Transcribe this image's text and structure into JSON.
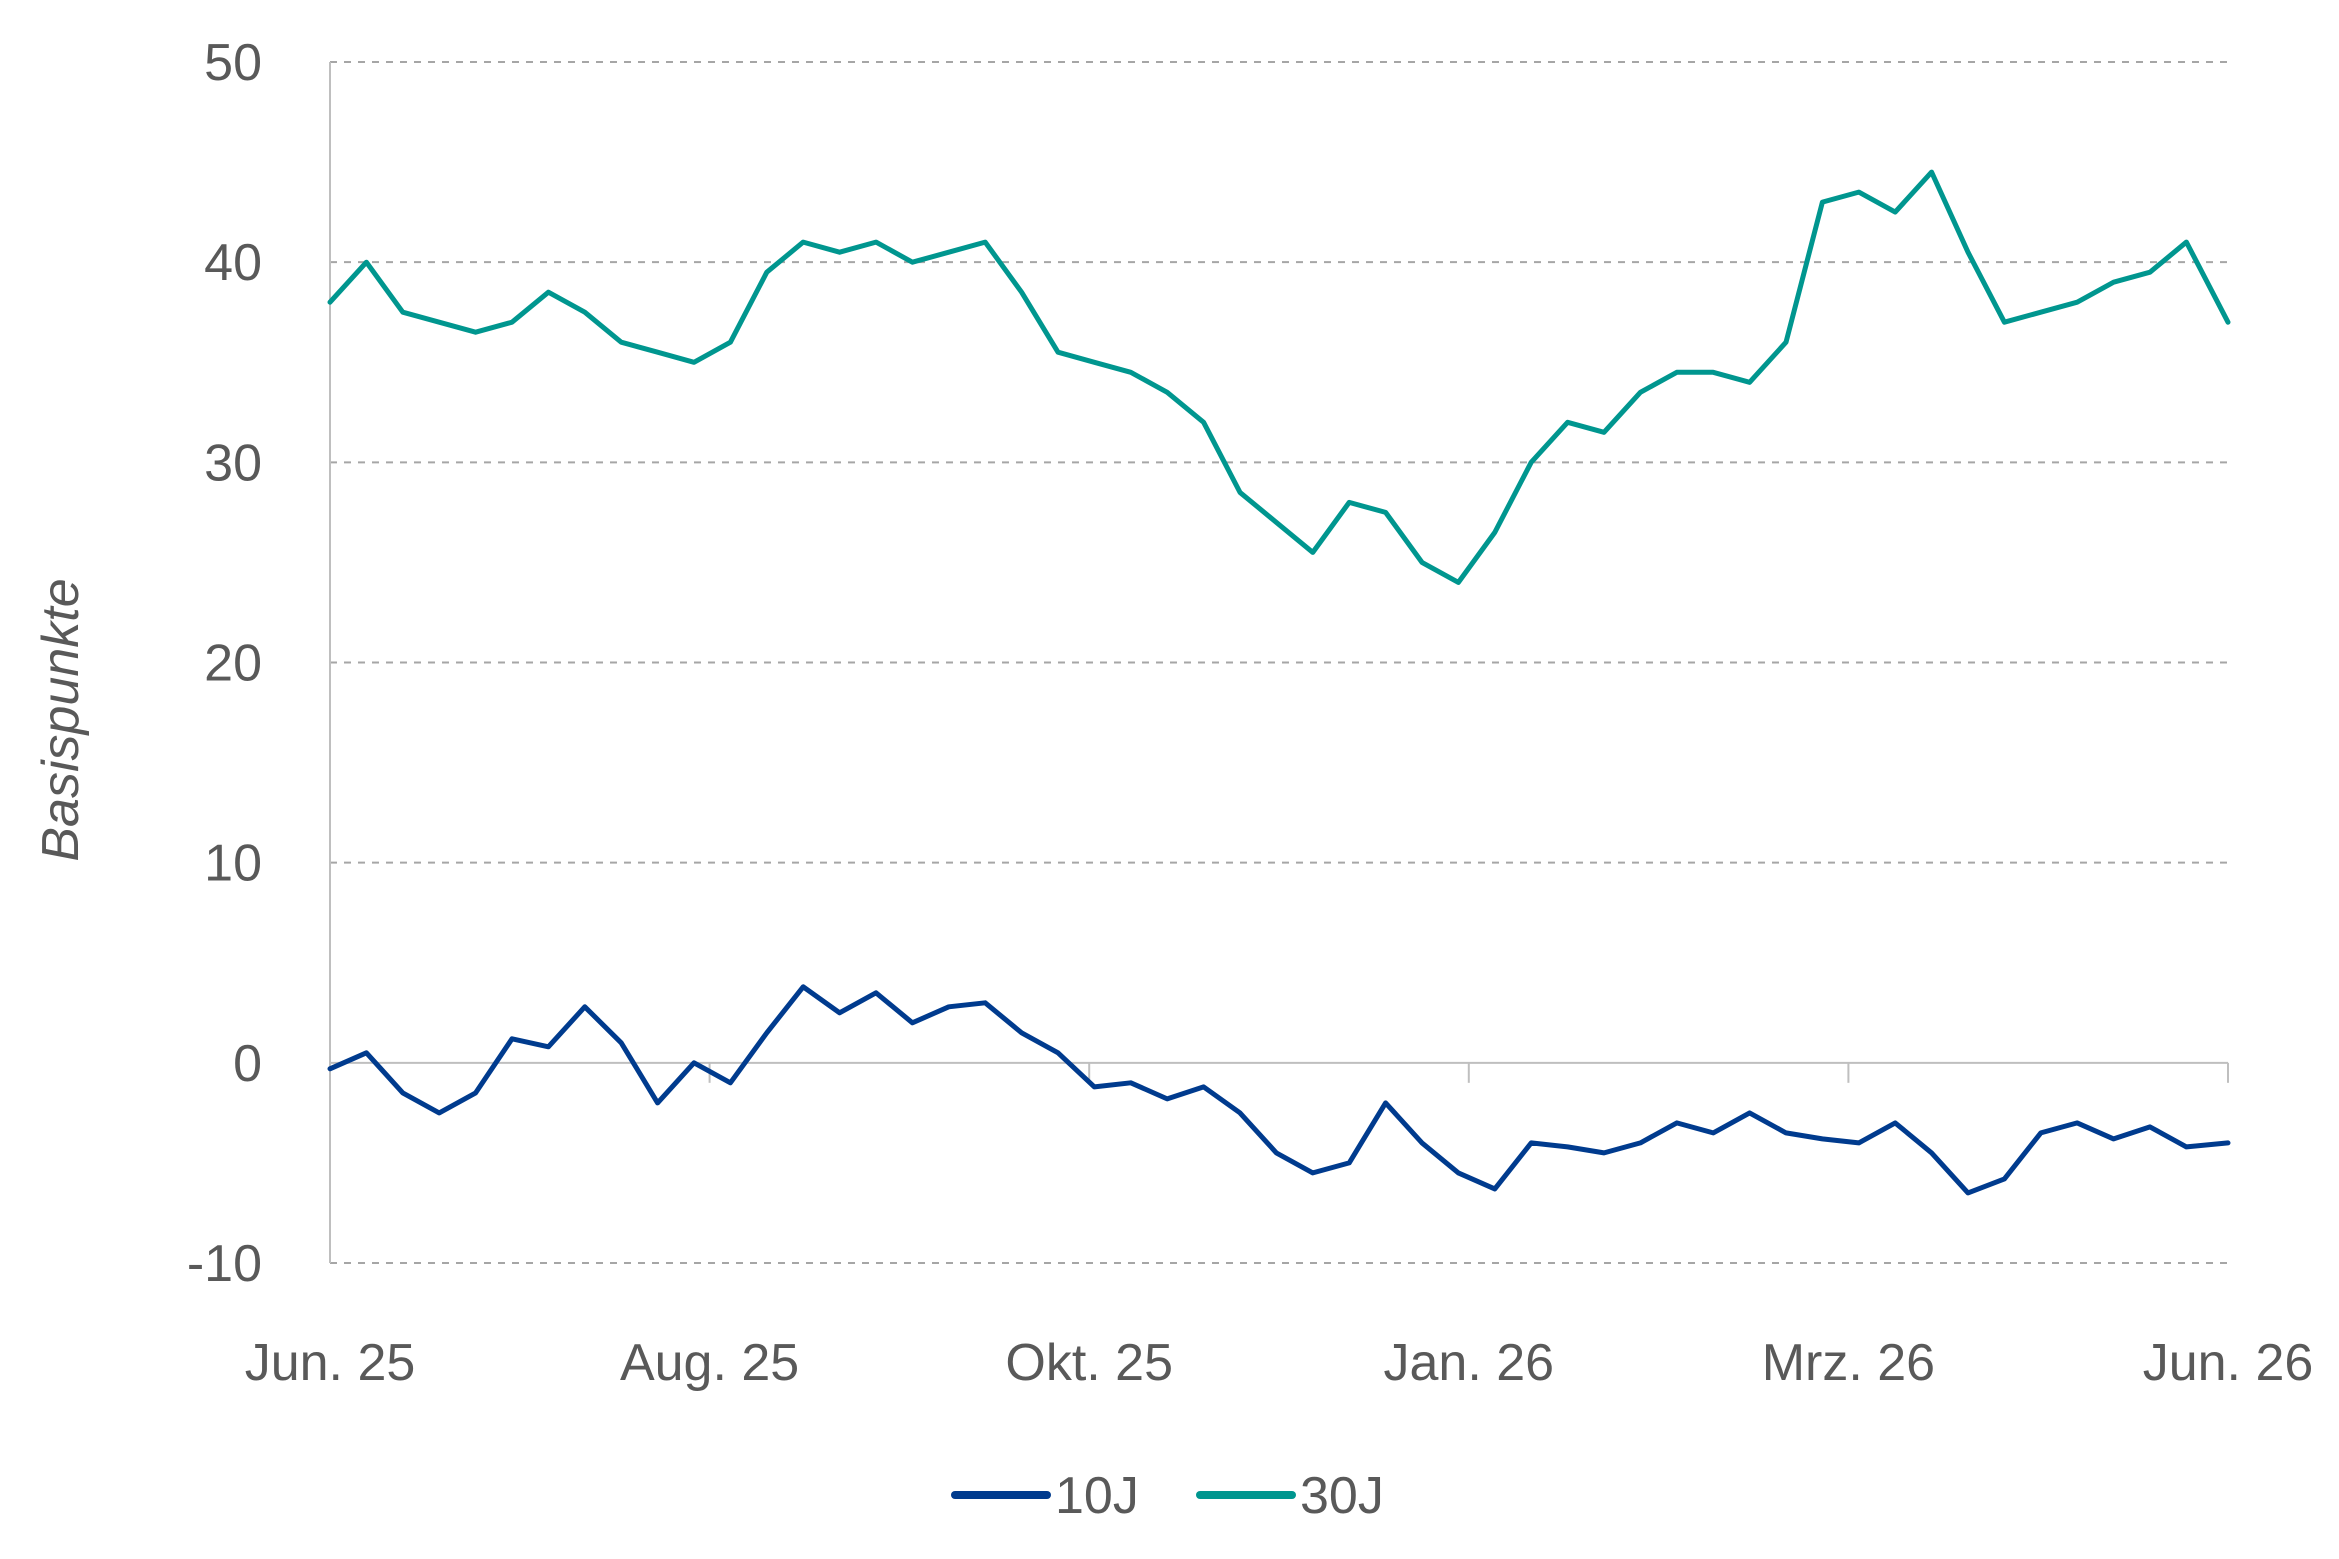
{
  "chart_data": {
    "type": "line",
    "ylabel": "Basispunkte",
    "ylim": [
      -10,
      50
    ],
    "yticks": [
      -10,
      0,
      10,
      20,
      30,
      40,
      50
    ],
    "grid": true,
    "legend_position": "bottom",
    "x_start": "2025-06-01",
    "x_end": "2026-06-01",
    "xtick_labels": [
      "Jun. 25",
      "Aug. 25",
      "Okt. 25",
      "Jan. 26",
      "Mrz. 26",
      "Jun. 26"
    ],
    "series": [
      {
        "name": "10J",
        "color": "#003b8e",
        "x": [
          "2025-06-01",
          "2025-06-08",
          "2025-06-15",
          "2025-06-22",
          "2025-06-29",
          "2025-07-06",
          "2025-07-13",
          "2025-07-20",
          "2025-07-27",
          "2025-08-03",
          "2025-08-10",
          "2025-08-17",
          "2025-08-24",
          "2025-08-31",
          "2025-09-07",
          "2025-09-14",
          "2025-09-21",
          "2025-09-28",
          "2025-10-05",
          "2025-10-12",
          "2025-10-19",
          "2025-10-26",
          "2025-11-02",
          "2025-11-09",
          "2025-11-16",
          "2025-11-23",
          "2025-11-30",
          "2025-12-07",
          "2025-12-14",
          "2025-12-21",
          "2025-12-28",
          "2026-01-04",
          "2026-01-11",
          "2026-01-18",
          "2026-01-25",
          "2026-02-01",
          "2026-02-08",
          "2026-02-15",
          "2026-02-22",
          "2026-03-01",
          "2026-03-08",
          "2026-03-15",
          "2026-03-22",
          "2026-03-29",
          "2026-04-05",
          "2026-04-12",
          "2026-04-19",
          "2026-04-26",
          "2026-05-03",
          "2026-05-10",
          "2026-05-17",
          "2026-05-24",
          "2026-06-01"
        ],
        "values": [
          -0.3,
          0.5,
          -1.5,
          -2.5,
          -1.5,
          1.2,
          0.8,
          2.8,
          1.0,
          -2.0,
          0.0,
          -1.0,
          1.5,
          3.8,
          2.5,
          3.5,
          2.0,
          2.8,
          3.0,
          1.5,
          0.5,
          -1.2,
          -1.0,
          -1.8,
          -1.2,
          -2.5,
          -4.5,
          -5.5,
          -5.0,
          -2.0,
          -4.0,
          -5.5,
          -6.3,
          -4.0,
          -4.2,
          -4.5,
          -4.0,
          -3.0,
          -3.5,
          -2.5,
          -3.5,
          -3.8,
          -4.0,
          -3.0,
          -4.5,
          -6.5,
          -5.8,
          -3.5,
          -3.0,
          -3.8,
          -3.2,
          -4.2,
          -4.0
        ]
      },
      {
        "name": "30J",
        "color": "#00968f",
        "x": [
          "2025-06-01",
          "2025-06-08",
          "2025-06-15",
          "2025-06-22",
          "2025-06-29",
          "2025-07-06",
          "2025-07-13",
          "2025-07-20",
          "2025-07-27",
          "2025-08-03",
          "2025-08-10",
          "2025-08-17",
          "2025-08-24",
          "2025-08-31",
          "2025-09-07",
          "2025-09-14",
          "2025-09-21",
          "2025-09-28",
          "2025-10-05",
          "2025-10-12",
          "2025-10-19",
          "2025-10-26",
          "2025-11-02",
          "2025-11-09",
          "2025-11-16",
          "2025-11-23",
          "2025-11-30",
          "2025-12-07",
          "2025-12-14",
          "2025-12-21",
          "2025-12-28",
          "2026-01-04",
          "2026-01-11",
          "2026-01-18",
          "2026-01-25",
          "2026-02-01",
          "2026-02-08",
          "2026-02-15",
          "2026-02-22",
          "2026-03-01",
          "2026-03-08",
          "2026-03-15",
          "2026-03-22",
          "2026-03-29",
          "2026-04-05",
          "2026-04-12",
          "2026-04-19",
          "2026-04-26",
          "2026-05-03",
          "2026-05-10",
          "2026-05-17",
          "2026-05-24",
          "2026-06-01"
        ],
        "values": [
          38.0,
          40.0,
          37.5,
          37.0,
          36.5,
          37.0,
          38.5,
          37.5,
          36.0,
          35.5,
          35.0,
          36.0,
          39.5,
          41.0,
          40.5,
          41.0,
          40.0,
          40.5,
          41.0,
          38.5,
          35.5,
          35.0,
          34.5,
          33.5,
          32.0,
          28.5,
          27.0,
          25.5,
          28.0,
          27.5,
          25.0,
          24.0,
          26.5,
          30.0,
          32.0,
          31.5,
          33.5,
          34.5,
          34.5,
          34.0,
          36.0,
          43.0,
          43.5,
          42.5,
          44.5,
          40.5,
          37.0,
          37.5,
          38.0,
          39.0,
          39.5,
          41.0,
          37.0
        ]
      }
    ]
  }
}
